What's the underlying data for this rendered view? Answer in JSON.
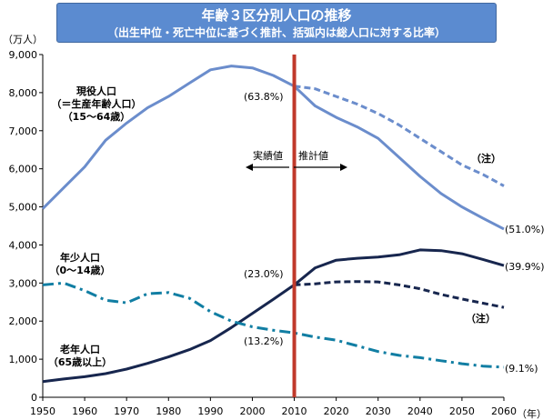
{
  "title": "年齢３区分別人口の推移",
  "subtitle": "（出生中位・死亡中位に基づく推計、括弧内は総人口に対する比率）",
  "y_unit": "（万人）",
  "x_unit": "（年）",
  "colors": {
    "working_age": "#6b8dcc",
    "juvenile": "#117ea3",
    "elderly": "#17264e",
    "divider": "#c0392b"
  },
  "labels": {
    "working_age": [
      "現役人口",
      "（＝生産年齢人口）",
      "（15～64歳）"
    ],
    "juvenile": [
      "年少人口",
      "（0～14歳）"
    ],
    "elderly": [
      "老年人口",
      "（65歳以上）"
    ],
    "actual": "実績値",
    "projected": "推計値",
    "note_upper": "（注）",
    "note_lower": "（注）"
  },
  "annotations": {
    "working_2010": "(63.8%)",
    "working_2060": "(51.0%)",
    "elderly_2010": "(23.0%)",
    "elderly_2060": "(39.9%)",
    "juvenile_2010": "(13.2%)",
    "juvenile_2060": "(9.1%)"
  },
  "chart_data": {
    "type": "line",
    "title": "年齢３区分別人口の推移",
    "xlabel": "（年）",
    "ylabel": "（万人）",
    "xlim": [
      1950,
      2060
    ],
    "ylim": [
      0,
      9000
    ],
    "x_ticks": [
      1950,
      1960,
      1970,
      1980,
      1990,
      2000,
      2010,
      2020,
      2030,
      2040,
      2050,
      2060
    ],
    "y_ticks": [
      0,
      1000,
      2000,
      3000,
      4000,
      5000,
      6000,
      7000,
      8000,
      9000
    ],
    "y_tick_labels": [
      "0",
      "1,000",
      "2,000",
      "3,000",
      "4,000",
      "5,000",
      "6,000",
      "7,000",
      "8,000",
      "9,000"
    ],
    "divider_year": 2010,
    "series": [
      {
        "name": "現役人口（15～64歳）",
        "style": "solid",
        "color": "#6b8dcc",
        "x": [
          1950,
          1955,
          1960,
          1965,
          1970,
          1975,
          1980,
          1985,
          1990,
          1995,
          2000,
          2005,
          2010,
          2015,
          2020,
          2025,
          2030,
          2035,
          2040,
          2045,
          2050,
          2055,
          2060
        ],
        "values": [
          4950,
          5500,
          6050,
          6750,
          7200,
          7600,
          7900,
          8250,
          8600,
          8700,
          8650,
          8450,
          8170,
          7650,
          7350,
          7100,
          6800,
          6300,
          5800,
          5350,
          5000,
          4700,
          4420
        ]
      },
      {
        "name": "現役人口（注）",
        "style": "dashed",
        "color": "#6b8dcc",
        "x": [
          2010,
          2015,
          2020,
          2025,
          2030,
          2035,
          2040,
          2045,
          2050,
          2055,
          2060
        ],
        "values": [
          8170,
          8100,
          7900,
          7700,
          7450,
          7150,
          6800,
          6450,
          6100,
          5850,
          5550
        ]
      },
      {
        "name": "老年人口（65歳以上）",
        "style": "solid",
        "color": "#17264e",
        "x": [
          1950,
          1955,
          1960,
          1965,
          1970,
          1975,
          1980,
          1985,
          1990,
          1995,
          2000,
          2005,
          2010,
          2015,
          2020,
          2025,
          2030,
          2035,
          2040,
          2045,
          2050,
          2055,
          2060
        ],
        "values": [
          410,
          480,
          540,
          620,
          740,
          890,
          1060,
          1250,
          1490,
          1830,
          2200,
          2570,
          2950,
          3400,
          3600,
          3650,
          3680,
          3740,
          3870,
          3850,
          3770,
          3620,
          3460
        ]
      },
      {
        "name": "老年人口（注）",
        "style": "dashed",
        "color": "#17264e",
        "x": [
          2010,
          2015,
          2020,
          2025,
          2030,
          2035,
          2040,
          2045,
          2050,
          2055,
          2060
        ],
        "values": [
          2950,
          2980,
          3030,
          3040,
          3030,
          2950,
          2850,
          2700,
          2580,
          2470,
          2360
        ]
      },
      {
        "name": "年少人口（0～14歳）",
        "style": "dashdot",
        "color": "#117ea3",
        "x": [
          1950,
          1955,
          1960,
          1965,
          1970,
          1975,
          1980,
          1985,
          1990,
          1995,
          2000,
          2005,
          2010,
          2015,
          2020,
          2025,
          2030,
          2035,
          2040,
          2045,
          2050,
          2055,
          2060
        ],
        "values": [
          2950,
          3000,
          2800,
          2550,
          2480,
          2720,
          2750,
          2600,
          2250,
          2000,
          1850,
          1760,
          1690,
          1580,
          1500,
          1350,
          1200,
          1100,
          1040,
          960,
          880,
          820,
          790
        ]
      }
    ]
  }
}
